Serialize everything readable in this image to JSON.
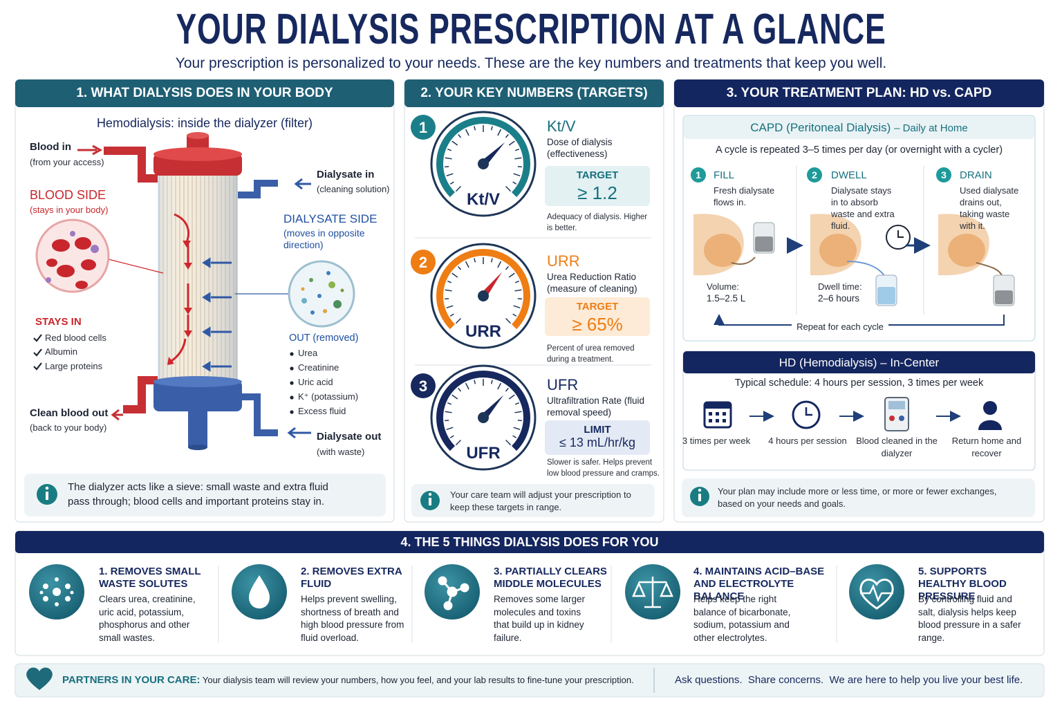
{
  "header": {
    "title": "YOUR DIALYSIS PRESCRIPTION AT A GLANCE",
    "subtitle": "Your prescription is personalized to your needs. These are the key numbers and treatments that keep you well."
  },
  "section1": {
    "heading": "1. WHAT DIALYSIS DOES IN YOUR BODY",
    "diagram_title": "Hemodialysis: inside the dialyzer (filter)",
    "blood_in": {
      "label": "Blood in",
      "note": "(from your access)"
    },
    "blood_side": {
      "label": "BLOOD SIDE",
      "note": "(stays in your body)"
    },
    "stays_in": {
      "label": "STAYS IN",
      "items": [
        "Red blood cells",
        "Albumin",
        "Large proteins"
      ]
    },
    "clean_blood_out": {
      "label": "Clean blood out",
      "note": "(back to your body)"
    },
    "dialysate_in": {
      "label": "Dialysate in",
      "note": "(cleaning solution)"
    },
    "dialysate_side": {
      "label": "DIALYSATE SIDE",
      "note": "(moves in opposite direction)"
    },
    "out_removed": {
      "label": "OUT (removed)",
      "items": [
        "Urea",
        "Creatinine",
        "Uric acid",
        "K⁺ (potassium)",
        "Excess fluid"
      ]
    },
    "dialysate_out": {
      "label": "Dialysate out",
      "note": "(with waste)"
    },
    "info": "The dialyzer acts like a sieve: small waste and extra fluid pass through; blood cells and important proteins stay in."
  },
  "section2": {
    "heading": "2. YOUR KEY NUMBERS (TARGETS)",
    "metrics": [
      {
        "number": "1",
        "gauge_label": "Kt/V",
        "name": "Kt/V",
        "description": "Dose of dialysis (effectiveness)",
        "target_label": "TARGET",
        "target": "≥ 1.2",
        "note": "Adequacy of dialysis. Higher is better."
      },
      {
        "number": "2",
        "gauge_label": "URR",
        "name": "URR",
        "description": "Urea Reduction Ratio (measure of cleaning)",
        "target_label": "TARGET",
        "target": "≥ 65%",
        "note": "Percent of urea removed during a treatment."
      },
      {
        "number": "3",
        "gauge_label": "UFR",
        "name": "UFR",
        "description": "Ultrafiltration Rate (fluid removal speed)",
        "target_label": "LIMIT",
        "target": "≤ 13 mL/hr/kg",
        "note": "Slower is safer. Helps prevent low blood pressure and cramps."
      }
    ],
    "info": "Your care team will adjust your prescription to keep these targets in range."
  },
  "section3": {
    "heading": "3. YOUR TREATMENT PLAN: HD vs. CAPD",
    "capd": {
      "title": "CAPD (Peritoneal Dialysis)",
      "title_suffix": "– Daily at Home",
      "intro": "A cycle is repeated 3–5 times per day (or overnight with a cycler)",
      "steps": [
        {
          "number": "1",
          "name": "FILL",
          "text": "Fresh dialysate flows in.",
          "detail_label": "Volume:",
          "detail": "1.5–2.5 L"
        },
        {
          "number": "2",
          "name": "DWELL",
          "text": "Dialysate stays in to absorb waste and extra fluid.",
          "detail_label": "Dwell time:",
          "detail": "2–6 hours"
        },
        {
          "number": "3",
          "name": "DRAIN",
          "text": "Used dialysate drains out, taking waste with it."
        }
      ],
      "repeat": "Repeat for each cycle"
    },
    "hd": {
      "title": "HD (Hemodialysis) – In-Center",
      "schedule": "Typical schedule: 4 hours per session, 3 times per week",
      "steps": [
        "3 times per week",
        "4 hours per session",
        "Blood cleaned in the dialyzer",
        "Return home and recover"
      ]
    },
    "info": "Your plan may include more or less time, or more or fewer exchanges, based on your needs and goals."
  },
  "section4": {
    "heading": "4. THE 5 THINGS DIALYSIS DOES FOR YOU",
    "items": [
      {
        "title": "1. REMOVES SMALL WASTE SOLUTES",
        "text": "Clears urea, creatinine, uric acid, potassium, phosphorus and other small wastes."
      },
      {
        "title": "2. REMOVES EXTRA FLUID",
        "text": "Helps prevent swelling, shortness of breath and high blood pressure from fluid overload."
      },
      {
        "title": "3. PARTIALLY CLEARS MIDDLE MOLECULES",
        "text": "Removes some larger molecules and toxins that build up in kidney failure."
      },
      {
        "title": "4. MAINTAINS ACID–BASE AND ELECTROLYTE BALANCE",
        "text": "Helps keep the right balance of bicarbonate, sodium, potassium and other electrolytes."
      },
      {
        "title": "5. SUPPORTS HEALTHY BLOOD PRESSURE",
        "text": "By controlling fluid and salt, dialysis helps keep blood pressure in a safer range."
      }
    ]
  },
  "footer": {
    "label": "PARTNERS IN YOUR CARE:",
    "text": "Your dialysis team will review your numbers, how you feel, and your lab results to fine-tune your prescription.",
    "tagline": "Ask questions.  Share concerns.  We are here to help you live your best life."
  }
}
